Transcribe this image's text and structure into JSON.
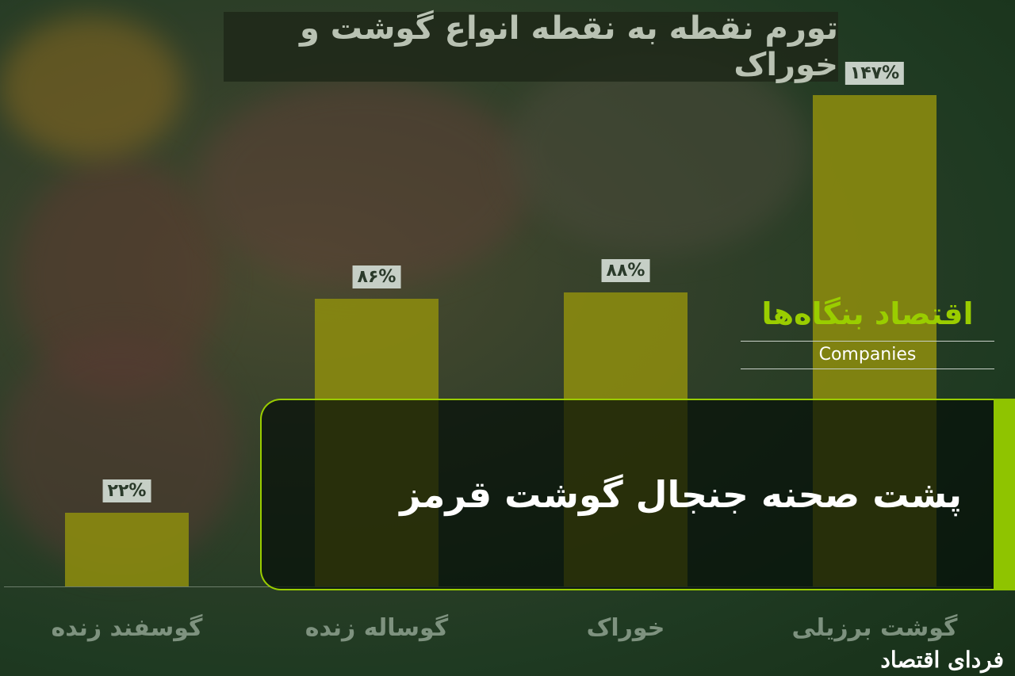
{
  "title": "تورم نقطه به نقطه انواع گوشت و خوراک",
  "banner": "پشت صحنه جنجال گوشت قرمز",
  "brand": {
    "persian": "اقتصاد بنگاه‌ها",
    "english": "Companies"
  },
  "logo": "فردای اقتصاد",
  "colors": {
    "bar": "#8c8c0f",
    "accent": "#9acd00",
    "background": "#1f3a22"
  },
  "chart_data": {
    "type": "bar",
    "title": "تورم نقطه به نقطه انواع گوشت و خوراک",
    "categories": [
      "گوسفند زنده",
      "گوساله زنده",
      "خوراک",
      "گوشت برزیلی"
    ],
    "values": [
      22,
      86,
      88,
      147
    ],
    "data_labels": [
      "۲۲%",
      "۸۶%",
      "۸۸%",
      "۱۴۷%"
    ],
    "unit": "%",
    "ylim": [
      0,
      147
    ],
    "grid": false
  }
}
